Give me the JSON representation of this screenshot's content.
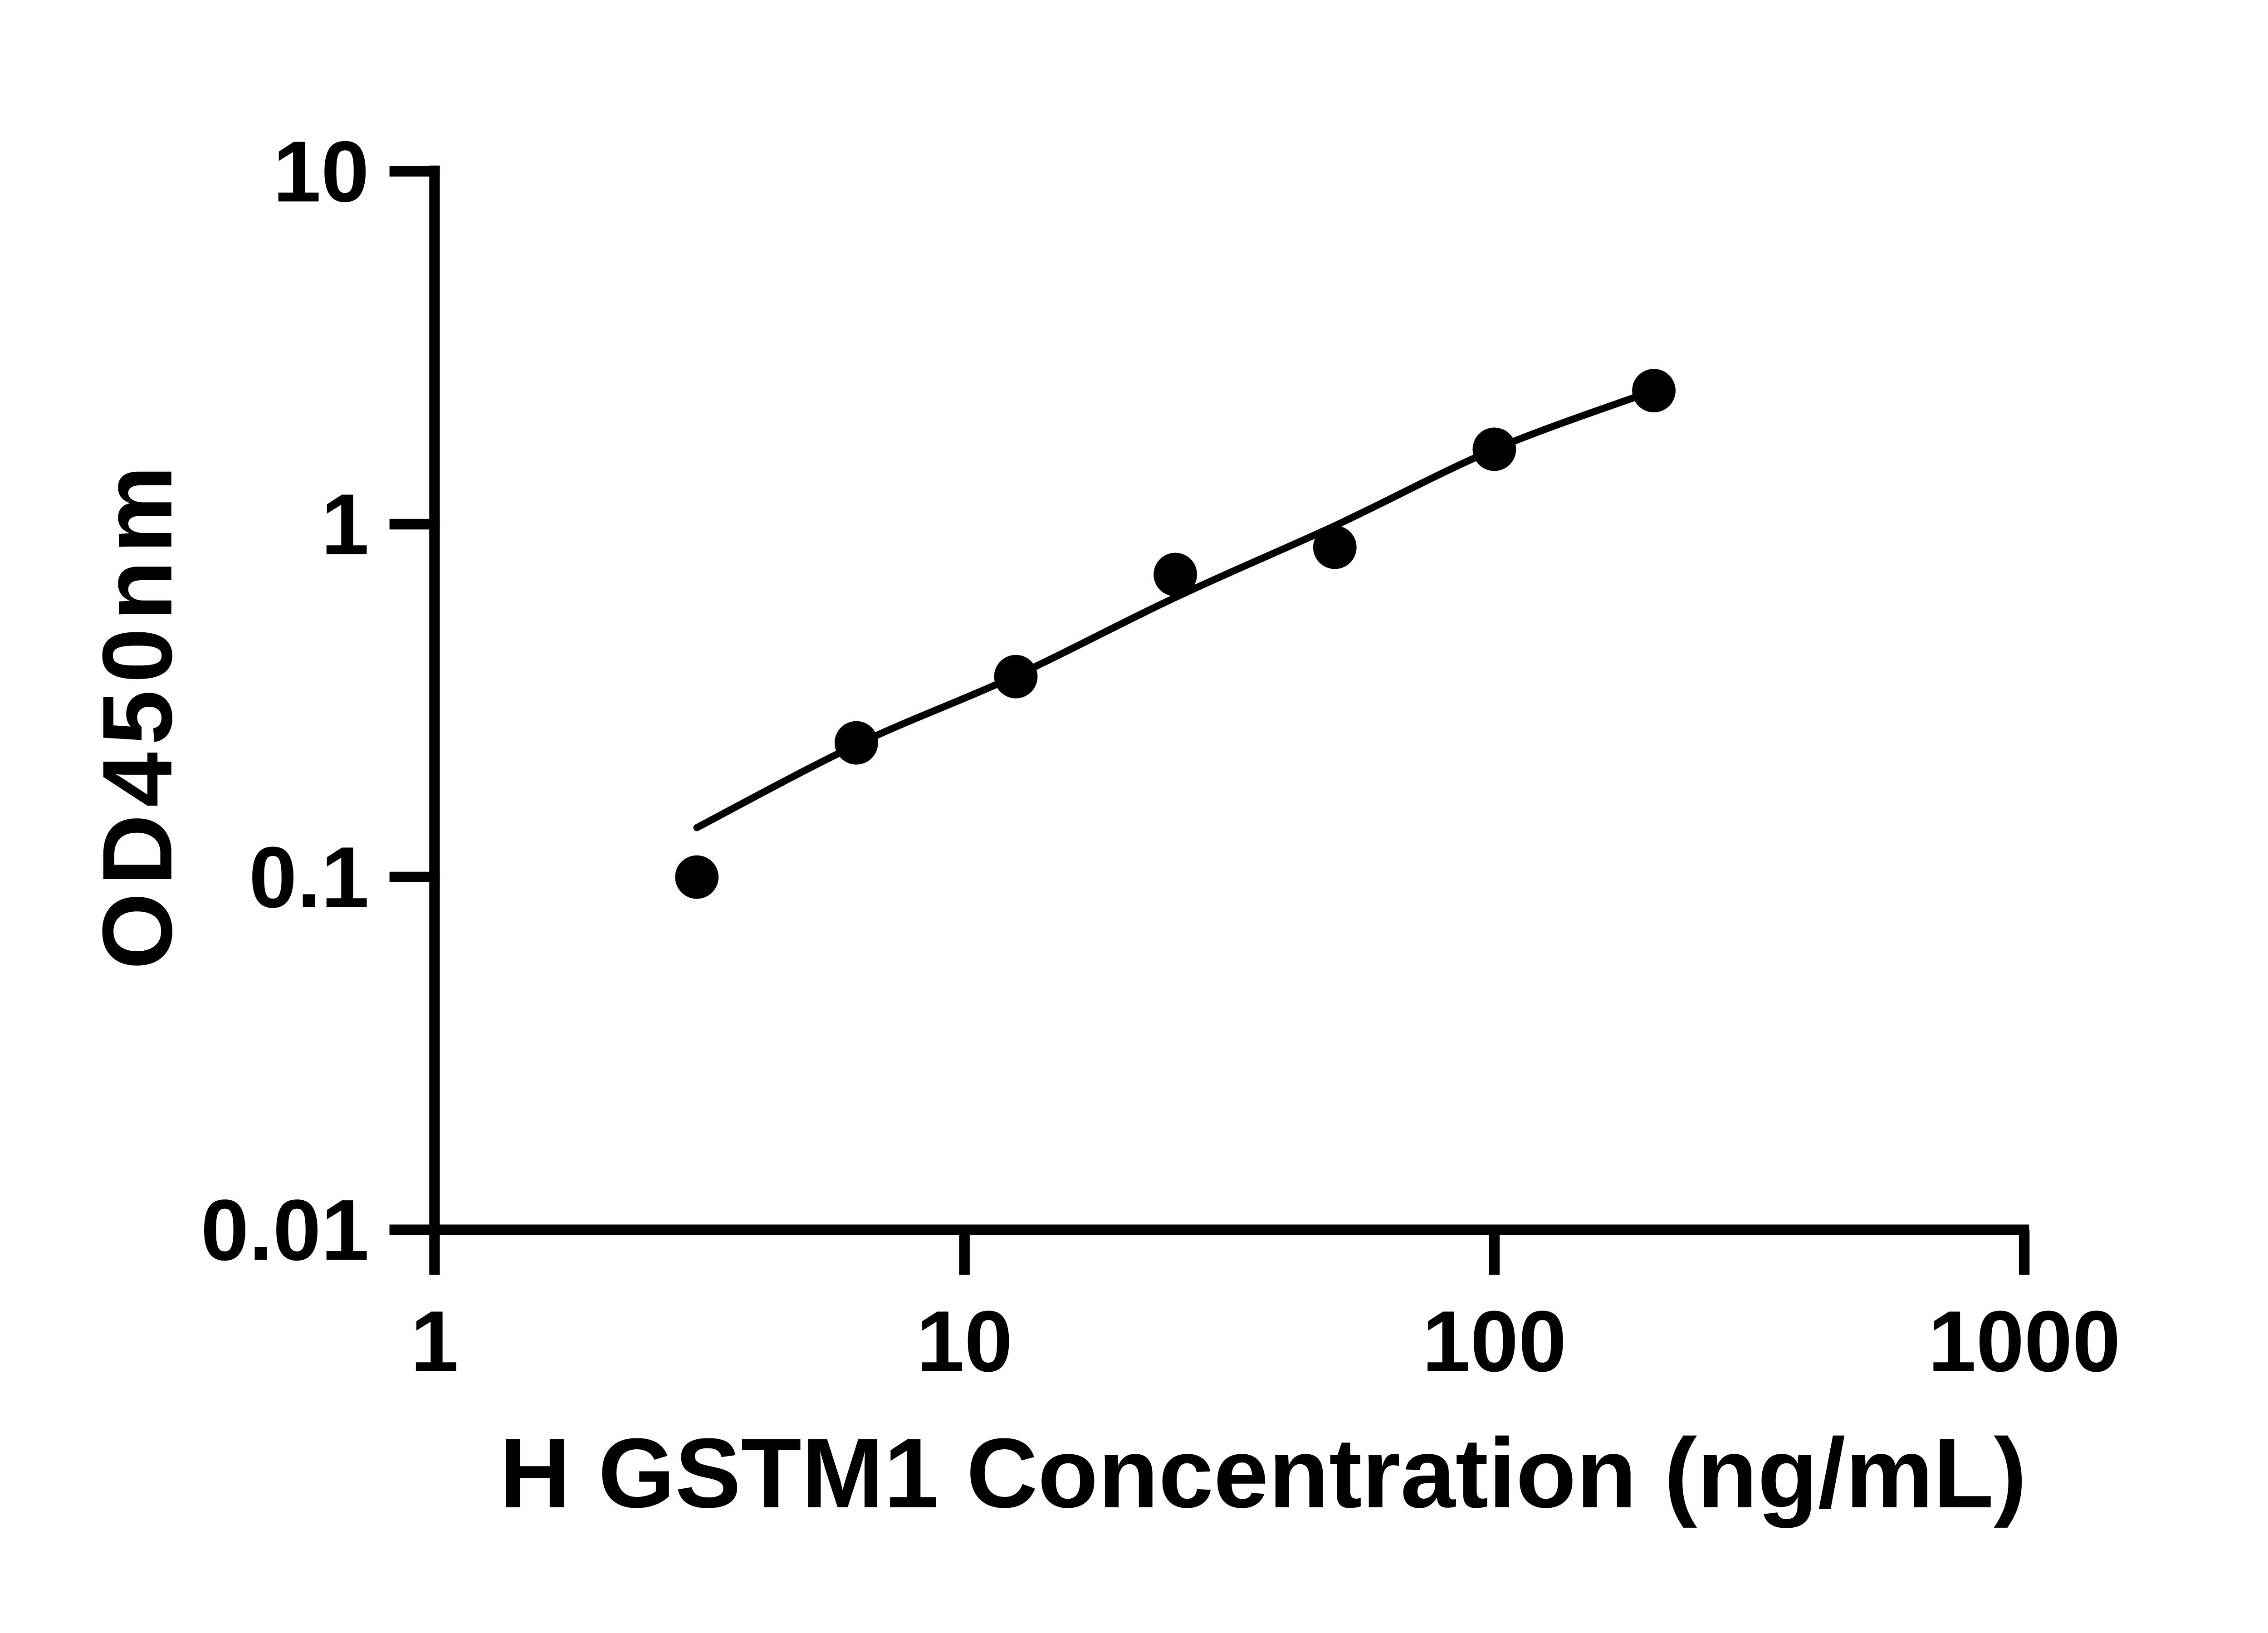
{
  "figure": {
    "background_color": "#ffffff",
    "ink_color": "#000000"
  },
  "chart_data": {
    "type": "scatter",
    "title": "",
    "xlabel": "H GSTM1 Concentration (ng/mL)",
    "ylabel": "OD450nm",
    "x_scale": "log10",
    "y_scale": "log10",
    "xlim": [
      1,
      1000
    ],
    "ylim": [
      0.01,
      10
    ],
    "grid": false,
    "legend": "none",
    "x_ticks": [
      {
        "v": 1,
        "label": "1"
      },
      {
        "v": 10,
        "label": "10"
      },
      {
        "v": 100,
        "label": "100"
      },
      {
        "v": 1000,
        "label": "1000"
      }
    ],
    "y_ticks": [
      {
        "v": 0.01,
        "label": "0.01"
      },
      {
        "v": 0.1,
        "label": "0.1"
      },
      {
        "v": 1,
        "label": "1"
      },
      {
        "v": 10,
        "label": "10"
      }
    ],
    "series": [
      {
        "name": "standards",
        "marker": "filled-circle",
        "color": "#000000",
        "points": [
          {
            "x": 3.125,
            "y": 0.1
          },
          {
            "x": 6.25,
            "y": 0.24
          },
          {
            "x": 12.5,
            "y": 0.37
          },
          {
            "x": 25,
            "y": 0.72
          },
          {
            "x": 50,
            "y": 0.86
          },
          {
            "x": 100,
            "y": 1.63
          },
          {
            "x": 200,
            "y": 2.39
          }
        ]
      }
    ],
    "fit_curve": {
      "name": "standard-curve-fit",
      "style": "solid",
      "color": "#000000",
      "points": [
        {
          "x": 3.125,
          "y": 0.138
        },
        {
          "x": 6.25,
          "y": 0.237
        },
        {
          "x": 12.5,
          "y": 0.372
        },
        {
          "x": 25,
          "y": 0.62
        },
        {
          "x": 50,
          "y": 0.99
        },
        {
          "x": 100,
          "y": 1.63
        },
        {
          "x": 200,
          "y": 2.39
        }
      ]
    }
  }
}
